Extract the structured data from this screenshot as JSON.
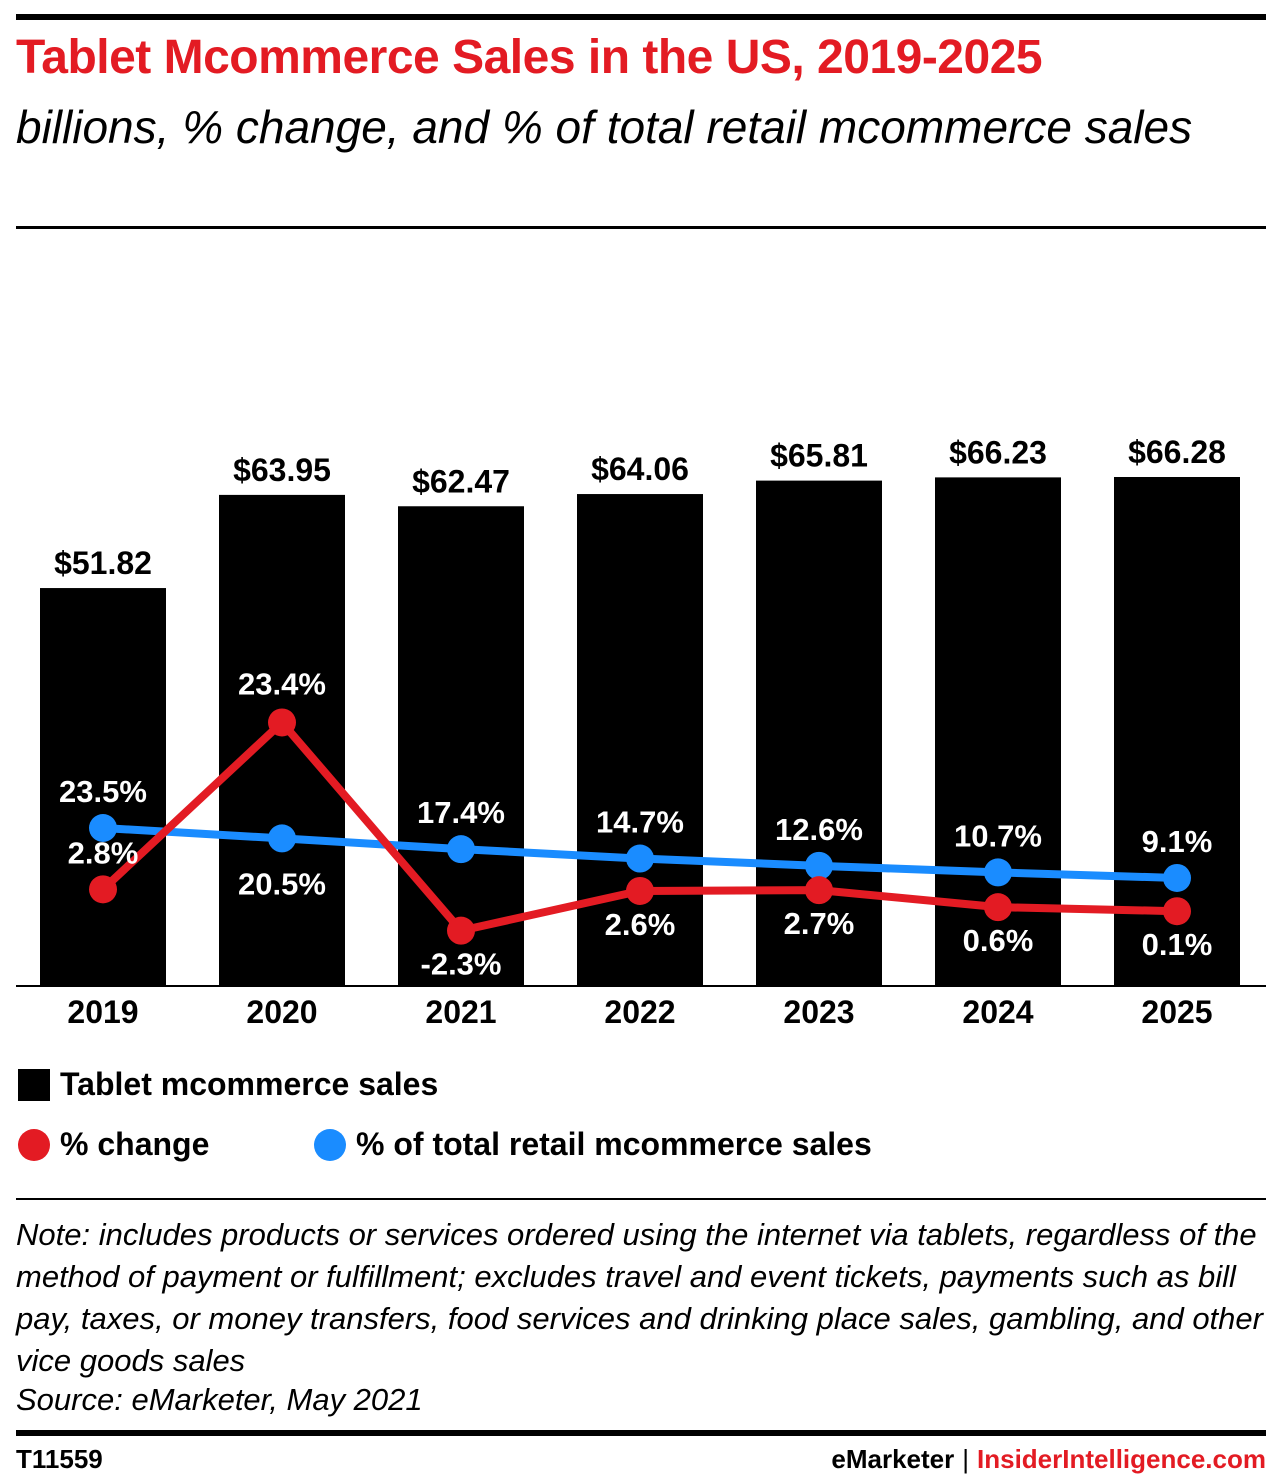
{
  "header": {
    "title": "Tablet Mcommerce Sales in the US, 2019-2025",
    "subtitle": "billions, % change, and % of total retail mcommerce sales"
  },
  "colors": {
    "title": "#e31b23",
    "bars": "#000000",
    "pct_change": "#e31b23",
    "pct_total": "#1a8cff"
  },
  "legend": {
    "bars": "Tablet mcommerce sales",
    "pct_change": "% change",
    "pct_total": "% of total retail mcommerce sales"
  },
  "chart_data": {
    "type": "bar",
    "categories": [
      "2019",
      "2020",
      "2021",
      "2022",
      "2023",
      "2024",
      "2025"
    ],
    "series": [
      {
        "name": "Tablet mcommerce sales",
        "type": "bar",
        "values": [
          51.82,
          63.95,
          62.47,
          64.06,
          65.81,
          66.23,
          66.28
        ],
        "labels": [
          "$51.82",
          "$63.95",
          "$62.47",
          "$64.06",
          "$65.81",
          "$66.23",
          "$66.28"
        ]
      },
      {
        "name": "% change",
        "type": "line",
        "values": [
          2.8,
          23.4,
          -2.3,
          2.6,
          2.7,
          0.6,
          0.1
        ],
        "labels": [
          "2.8%",
          "23.4%",
          "-2.3%",
          "2.6%",
          "2.7%",
          "0.6%",
          "0.1%"
        ]
      },
      {
        "name": "% of total retail mcommerce sales",
        "type": "line",
        "values": [
          23.5,
          20.5,
          17.4,
          14.7,
          12.6,
          10.7,
          9.1
        ],
        "labels": [
          "23.5%",
          "20.5%",
          "17.4%",
          "14.7%",
          "12.6%",
          "10.7%",
          "9.1%"
        ]
      }
    ],
    "grid": false,
    "legend_position": "bottom"
  },
  "footer": {
    "note": "Note: includes products or services ordered using the internet via tablets, regardless of the method of payment or fulfillment; excludes travel and event tickets, payments such as bill pay, taxes, or money transfers, food services and drinking place sales, gambling, and other vice goods sales",
    "source": "Source: eMarketer, May 2021",
    "chart_id": "T11559",
    "brand": "eMarketer",
    "separator": "|",
    "brand2": "InsiderIntelligence.com"
  }
}
